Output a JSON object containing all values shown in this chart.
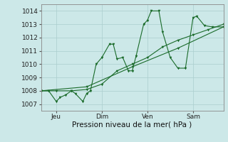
{
  "xlabel": "Pression niveau de la mer( hPa )",
  "bg_color": "#cce8e8",
  "grid_color": "#aacece",
  "line_color": "#1a6b2a",
  "ylim": [
    1006.5,
    1014.5
  ],
  "xlim": [
    0,
    96
  ],
  "yticks": [
    1007,
    1008,
    1009,
    1010,
    1011,
    1012,
    1013,
    1014
  ],
  "xtick_positions": [
    8,
    32,
    56,
    80
  ],
  "xtick_labels": [
    "Jeu",
    "Dim",
    "Ven",
    "Sam"
  ],
  "series1_x": [
    0,
    4,
    8,
    10,
    13,
    16,
    18,
    22,
    24,
    26,
    29,
    32,
    36,
    38,
    40,
    43,
    46,
    48,
    50,
    54,
    56,
    58,
    62,
    64,
    68,
    72,
    76,
    80,
    82,
    86,
    90,
    96
  ],
  "series1_y": [
    1008.0,
    1008.0,
    1007.2,
    1007.5,
    1007.7,
    1008.0,
    1007.8,
    1007.2,
    1007.8,
    1008.0,
    1010.0,
    1010.5,
    1011.5,
    1011.5,
    1010.4,
    1010.5,
    1009.5,
    1009.5,
    1010.6,
    1013.0,
    1013.3,
    1014.0,
    1014.0,
    1012.4,
    1010.5,
    1009.7,
    1009.7,
    1013.5,
    1013.6,
    1012.9,
    1012.8,
    1012.8
  ],
  "series2_x": [
    0,
    24,
    48,
    72,
    96
  ],
  "series2_y": [
    1008.0,
    1008.3,
    1009.8,
    1011.2,
    1012.8
  ],
  "series3_x": [
    0,
    8,
    16,
    24,
    32,
    40,
    48,
    56,
    64,
    72,
    80,
    88,
    96
  ],
  "series3_y": [
    1008.0,
    1008.0,
    1008.0,
    1008.1,
    1008.5,
    1009.5,
    1010.0,
    1010.5,
    1011.3,
    1011.8,
    1012.2,
    1012.6,
    1013.0
  ]
}
